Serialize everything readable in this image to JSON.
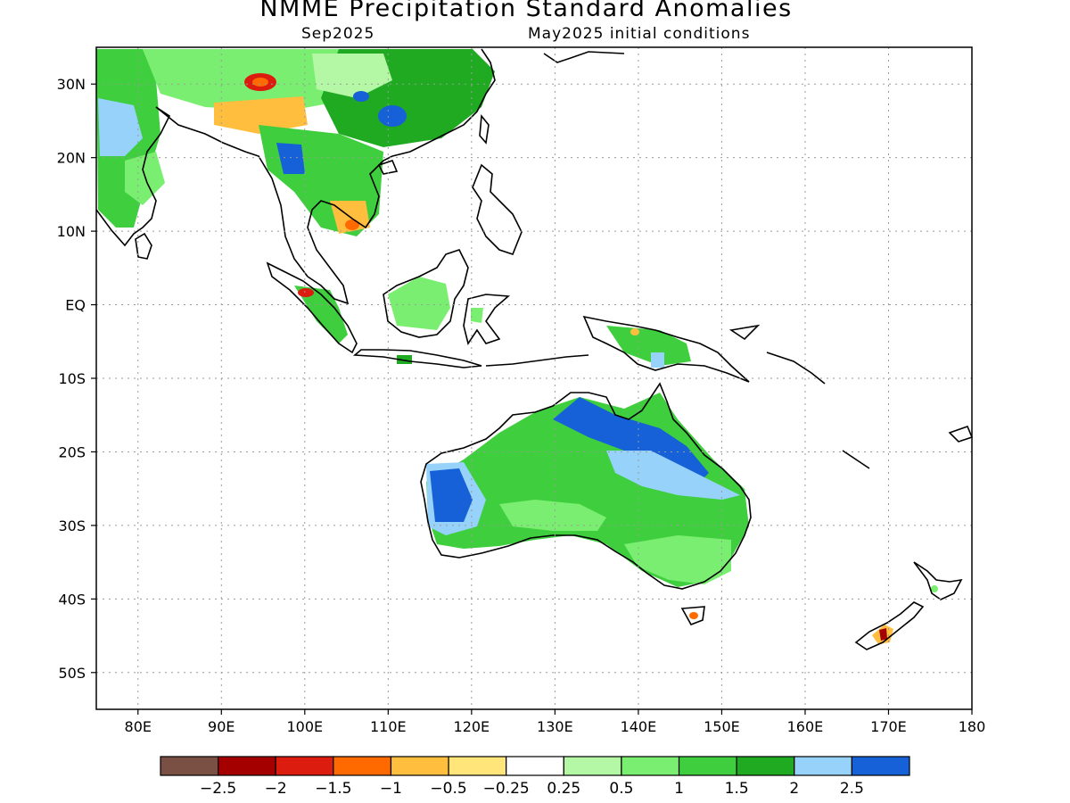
{
  "title": "NMME Precipitation Standard Anomalies",
  "subtitle_left": "Sep2025",
  "subtitle_right": "May2025 initial conditions",
  "map": {
    "lon_range": [
      75,
      180
    ],
    "lat_range": [
      -55,
      35
    ],
    "lon_ticks": [
      {
        "value": 80,
        "label": "80E"
      },
      {
        "value": 90,
        "label": "90E"
      },
      {
        "value": 100,
        "label": "100E"
      },
      {
        "value": 110,
        "label": "110E"
      },
      {
        "value": 120,
        "label": "120E"
      },
      {
        "value": 130,
        "label": "130E"
      },
      {
        "value": 140,
        "label": "140E"
      },
      {
        "value": 150,
        "label": "150E"
      },
      {
        "value": 160,
        "label": "160E"
      },
      {
        "value": 170,
        "label": "170E"
      },
      {
        "value": 180,
        "label": "180"
      }
    ],
    "lat_ticks": [
      {
        "value": 30,
        "label": "30N"
      },
      {
        "value": 20,
        "label": "20N"
      },
      {
        "value": 10,
        "label": "10N"
      },
      {
        "value": 0,
        "label": "EQ"
      },
      {
        "value": -10,
        "label": "10S"
      },
      {
        "value": -20,
        "label": "20S"
      },
      {
        "value": -30,
        "label": "30S"
      },
      {
        "value": -40,
        "label": "40S"
      },
      {
        "value": -50,
        "label": "50S"
      }
    ],
    "grid": true
  },
  "colorbar": {
    "colors": [
      "#7a4f44",
      "#a50000",
      "#dd1c10",
      "#ff6a00",
      "#ffbe3e",
      "#ffe57a",
      "#ffffff",
      "#b4f8a6",
      "#7aee70",
      "#3fcf3e",
      "#1faa22",
      "#96d2fa",
      "#1660d8"
    ],
    "labels": [
      "−2.5",
      "−2",
      "−1.5",
      "−1",
      "−0.5",
      "−0.25",
      "0.25",
      "0.5",
      "1",
      "1.5",
      "2",
      "2.5"
    ]
  }
}
